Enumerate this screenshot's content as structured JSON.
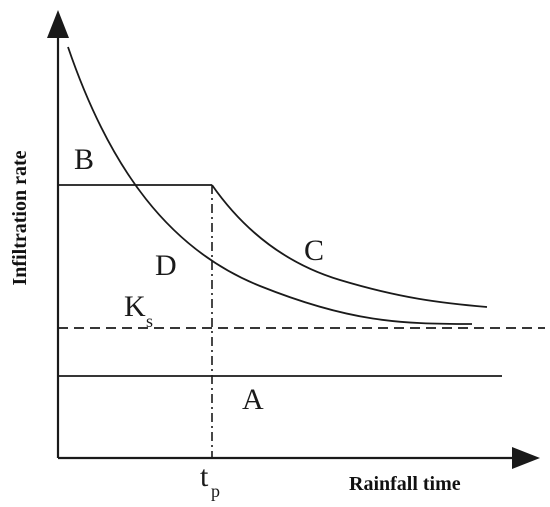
{
  "axes": {
    "y_label": "Infiltration rate",
    "x_label": "Rainfall time"
  },
  "labels": {
    "a": "A",
    "b": "B",
    "c": "C",
    "d": "D",
    "ks_main": "K",
    "ks_sub": "s",
    "tp_main": "t",
    "tp_sub": "p"
  },
  "colors": {
    "line": "#1a1a1a"
  }
}
